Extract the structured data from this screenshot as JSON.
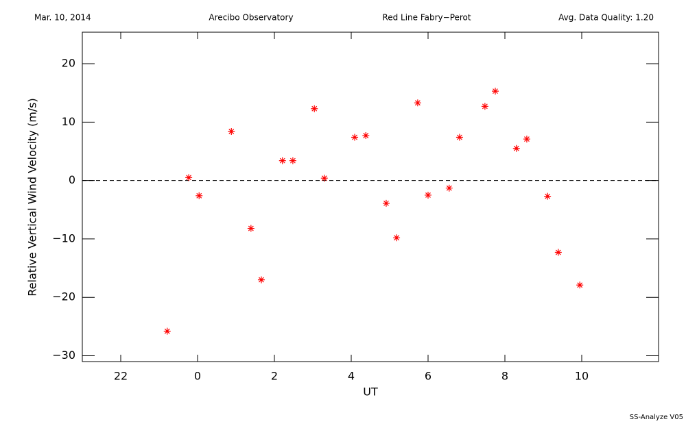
{
  "header": [
    "Mar. 10, 2014",
    "Arecibo Observatory",
    "Red Line Fabry−Perot",
    "Avg. Data Quality: 1.20"
  ],
  "footer": "SS-Analyze V05",
  "chart_data": {
    "type": "scatter",
    "x_label": "UT",
    "y_label": "Relative Vertical Wind Velocity (m/s)",
    "xlim": [
      -3,
      12
    ],
    "ylim": [
      -31,
      25.4
    ],
    "xticks": [
      {
        "value": -2,
        "label": "22"
      },
      0,
      2,
      4,
      6,
      8,
      10
    ],
    "yticks": [
      {
        "value": -30,
        "label": "−30"
      },
      {
        "value": -20,
        "label": "−20"
      },
      {
        "value": -10,
        "label": "−10"
      },
      0,
      10,
      20
    ],
    "zero_line": 0,
    "series": [
      {
        "color": "#ff0000",
        "x": [
          -0.79,
          -0.23,
          0.04,
          0.88,
          1.39,
          1.66,
          2.21,
          2.48,
          3.04,
          3.3,
          4.09,
          4.38,
          4.91,
          5.18,
          5.73,
          6.0,
          6.55,
          6.82,
          7.48,
          7.75,
          8.3,
          8.57,
          9.11,
          9.39,
          9.95
        ],
        "values": [
          -25.8,
          0.5,
          -2.6,
          8.4,
          -8.2,
          -17.0,
          3.4,
          3.4,
          12.3,
          0.4,
          7.4,
          7.7,
          -3.9,
          -9.8,
          13.3,
          -2.5,
          -1.3,
          7.4,
          12.7,
          15.3,
          5.5,
          7.1,
          -2.7,
          -12.3,
          -17.9
        ]
      }
    ]
  }
}
